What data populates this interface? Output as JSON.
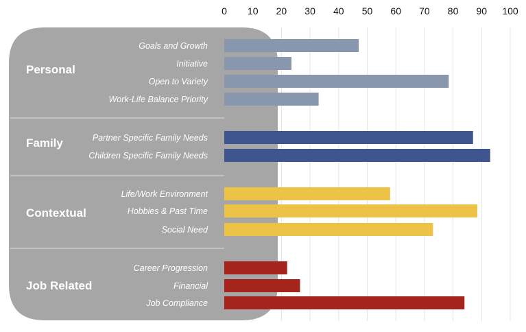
{
  "chart_data": {
    "type": "bar",
    "orientation": "horizontal",
    "title": "",
    "xlabel": "",
    "ylabel": "",
    "xlim": [
      0,
      100
    ],
    "x_ticks": [
      0,
      10,
      20,
      30,
      40,
      50,
      60,
      70,
      80,
      90,
      100
    ],
    "x_tick_labels": [
      "0",
      "10",
      "20",
      "30",
      "40",
      "50",
      "60",
      "70",
      "80",
      "90",
      "100"
    ],
    "tick_position": "top",
    "grid": true,
    "legend": "none",
    "groups": [
      {
        "name": "Personal",
        "color": "#8896ae",
        "categories": [
          "Goals and Growth",
          "Initiative",
          "Open to Variety",
          "Work-Life Balance Priority"
        ],
        "values": [
          47,
          23.5,
          78.5,
          33
        ]
      },
      {
        "name": "Family",
        "color": "#3e5590",
        "categories": [
          "Partner Specific Family Needs",
          "Children Specific Family Needs"
        ],
        "values": [
          87,
          93
        ]
      },
      {
        "name": "Contextual",
        "color": "#ecc346",
        "categories": [
          "Life/Work Environment",
          "Hobbies & Past Time",
          "Social Need"
        ],
        "values": [
          58,
          88.5,
          73
        ]
      },
      {
        "name": "Job Related",
        "color": "#a5241b",
        "categories": [
          "Career Progression",
          "Financial",
          "Job Compliance"
        ],
        "values": [
          22,
          26.5,
          84
        ]
      }
    ]
  },
  "colors": {
    "panel": "#a6a6a6",
    "separator": "#d4d4d4",
    "grid": "#e4e4e4"
  }
}
